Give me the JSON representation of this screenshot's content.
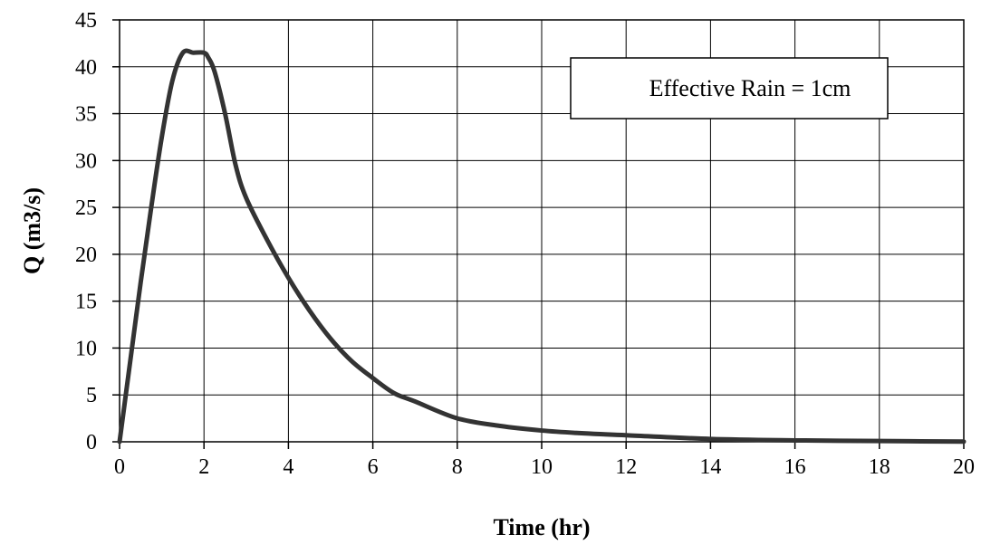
{
  "chart_data": {
    "type": "line",
    "title": "",
    "xlabel": "Time (hr)",
    "ylabel": "Q (m3/s)",
    "xlim": [
      0,
      20
    ],
    "ylim": [
      0,
      45
    ],
    "x_ticks": [
      "0",
      "2",
      "4",
      "6",
      "8",
      "10",
      "12",
      "14",
      "16",
      "18",
      "20"
    ],
    "y_ticks": [
      "0",
      "5",
      "10",
      "15",
      "20",
      "25",
      "30",
      "35",
      "40",
      "45"
    ],
    "grid": true,
    "legend": "none",
    "annotation": "Effective Rain = 1cm",
    "line_color": "#333333",
    "series": [
      {
        "x": [
          0,
          0.25,
          0.5,
          0.75,
          1.0,
          1.25,
          1.5,
          1.75,
          2.0,
          2.1,
          2.25,
          2.5,
          2.75,
          3.0,
          3.5,
          4.0,
          4.5,
          5.0,
          5.5,
          6.0,
          6.5,
          7.0,
          8.0,
          9.0,
          10.0,
          11.0,
          12.0,
          14.0,
          16.0,
          18.0,
          20.0
        ],
        "y": [
          0,
          8.5,
          17,
          25,
          32.5,
          38.5,
          41.5,
          41.5,
          41.5,
          41,
          39.5,
          35,
          29.5,
          26,
          21.5,
          17.5,
          14,
          11,
          8.6,
          6.8,
          5.2,
          4.3,
          2.5,
          1.7,
          1.2,
          0.9,
          0.7,
          0.3,
          0.15,
          0.08,
          0.02
        ]
      }
    ]
  }
}
